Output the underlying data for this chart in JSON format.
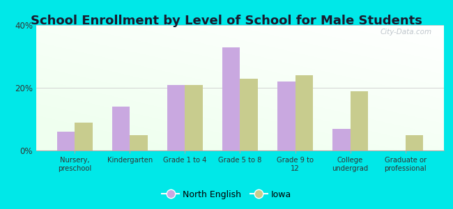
{
  "title": "School Enrollment by Level of School for Male Students",
  "categories": [
    "Nursery,\npreschool",
    "Kindergarten",
    "Grade 1 to 4",
    "Grade 5 to 8",
    "Grade 9 to\n12",
    "College\nundergrad",
    "Graduate or\nprofessional"
  ],
  "north_english": [
    6.0,
    14.0,
    21.0,
    33.0,
    22.0,
    7.0,
    0.0
  ],
  "iowa": [
    9.0,
    5.0,
    21.0,
    23.0,
    24.0,
    19.0,
    5.0
  ],
  "ne_color": "#c9a8e0",
  "iowa_color": "#c8cc8e",
  "background_outer": "#00e8e8",
  "ylim": [
    0,
    40
  ],
  "yticks": [
    0,
    20,
    40
  ],
  "ytick_labels": [
    "0%",
    "20%",
    "40%"
  ],
  "legend_ne": "North English",
  "legend_iowa": "Iowa",
  "title_fontsize": 13,
  "watermark": "City-Data.com",
  "bar_width": 0.32
}
